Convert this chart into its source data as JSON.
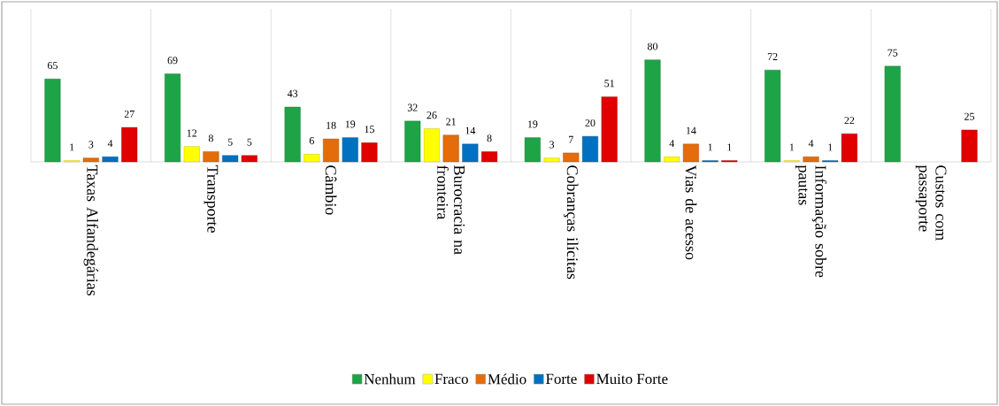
{
  "chart_data": {
    "type": "bar",
    "categories": [
      "Taxas Alfandegárias",
      "Transporte",
      "Câmbio",
      "Burocracia na fronteira",
      "Cobranças ilícitas",
      "Vias de acesso",
      "Informação sobre pautas",
      "Custos com passaporte"
    ],
    "series": [
      {
        "name": "Nenhum",
        "color": "#1ea446",
        "values": [
          65,
          69,
          43,
          32,
          19,
          80,
          72,
          75
        ]
      },
      {
        "name": "Fraco",
        "color": "#ffff00",
        "values": [
          1,
          12,
          6,
          26,
          3,
          4,
          1,
          null
        ]
      },
      {
        "name": "Médio",
        "color": "#e46c0a",
        "values": [
          3,
          8,
          18,
          21,
          7,
          14,
          4,
          null
        ]
      },
      {
        "name": "Forte",
        "color": "#0070c0",
        "values": [
          4,
          5,
          19,
          14,
          20,
          1,
          1,
          null
        ]
      },
      {
        "name": "Muito Forte",
        "color": "#e00000",
        "values": [
          27,
          5,
          15,
          8,
          51,
          1,
          22,
          25
        ]
      }
    ],
    "data_labels": true,
    "grid": "x",
    "legend": "bottom"
  }
}
